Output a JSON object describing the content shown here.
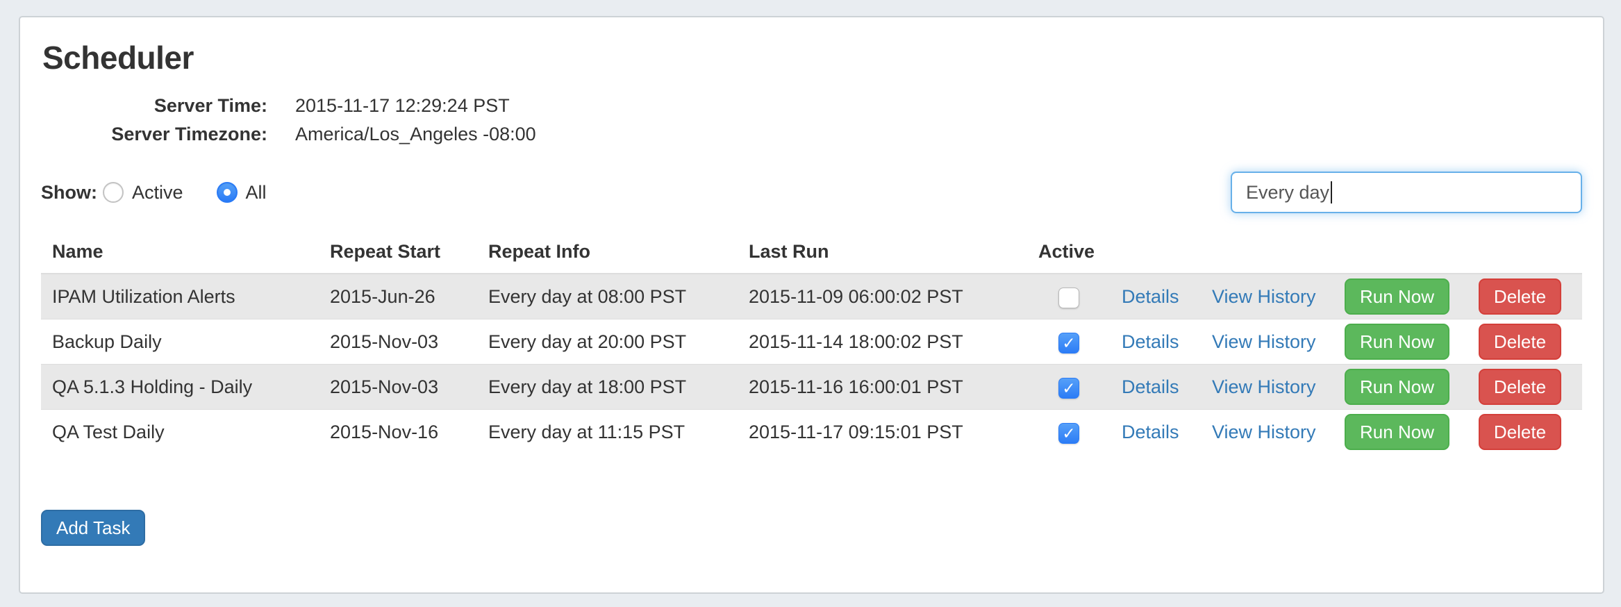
{
  "page": {
    "title": "Scheduler"
  },
  "server_info": {
    "time_label": "Server Time:",
    "time_value": "2015-11-17 12:29:24 PST",
    "timezone_label": "Server Timezone:",
    "timezone_value": "America/Los_Angeles -08:00"
  },
  "filters": {
    "show_label": "Show:",
    "options": [
      {
        "label": "Active",
        "selected": false
      },
      {
        "label": "All",
        "selected": true
      }
    ],
    "search": {
      "value": "Every day"
    }
  },
  "table": {
    "headers": {
      "name": "Name",
      "repeat_start": "Repeat Start",
      "repeat_info": "Repeat Info",
      "last_run": "Last Run",
      "active": "Active"
    },
    "row_actions": {
      "details": "Details",
      "view_history": "View History",
      "run_now": "Run Now",
      "delete": "Delete"
    },
    "rows": [
      {
        "name": "IPAM Utilization Alerts",
        "repeat_start": "2015-Jun-26",
        "repeat_info": "Every day at 08:00 PST",
        "last_run": "2015-11-09 06:00:02 PST",
        "active": false
      },
      {
        "name": "Backup Daily",
        "repeat_start": "2015-Nov-03",
        "repeat_info": "Every day at 20:00 PST",
        "last_run": "2015-11-14 18:00:02 PST",
        "active": true
      },
      {
        "name": "QA 5.1.3 Holding - Daily",
        "repeat_start": "2015-Nov-03",
        "repeat_info": "Every day at 18:00 PST",
        "last_run": "2015-11-16 16:00:01 PST",
        "active": true
      },
      {
        "name": "QA Test Daily",
        "repeat_start": "2015-Nov-16",
        "repeat_info": "Every day at 11:15 PST",
        "last_run": "2015-11-17 09:15:01 PST",
        "active": true
      }
    ]
  },
  "actions": {
    "add_task": "Add Task"
  },
  "icons": {
    "checkmark": "✓"
  },
  "colors": {
    "accent_blue": "#337ab7",
    "success_green": "#5cb85c",
    "danger_red": "#d9534f",
    "checkbox_blue": "#2c7cf6",
    "focus_border": "#67b0e9",
    "stripe_gray": "#e8e8e8",
    "row_border": "#dddddd",
    "outer_background": "#e9edf1",
    "panel_border": "#cdd2d6",
    "text": "#333333"
  }
}
